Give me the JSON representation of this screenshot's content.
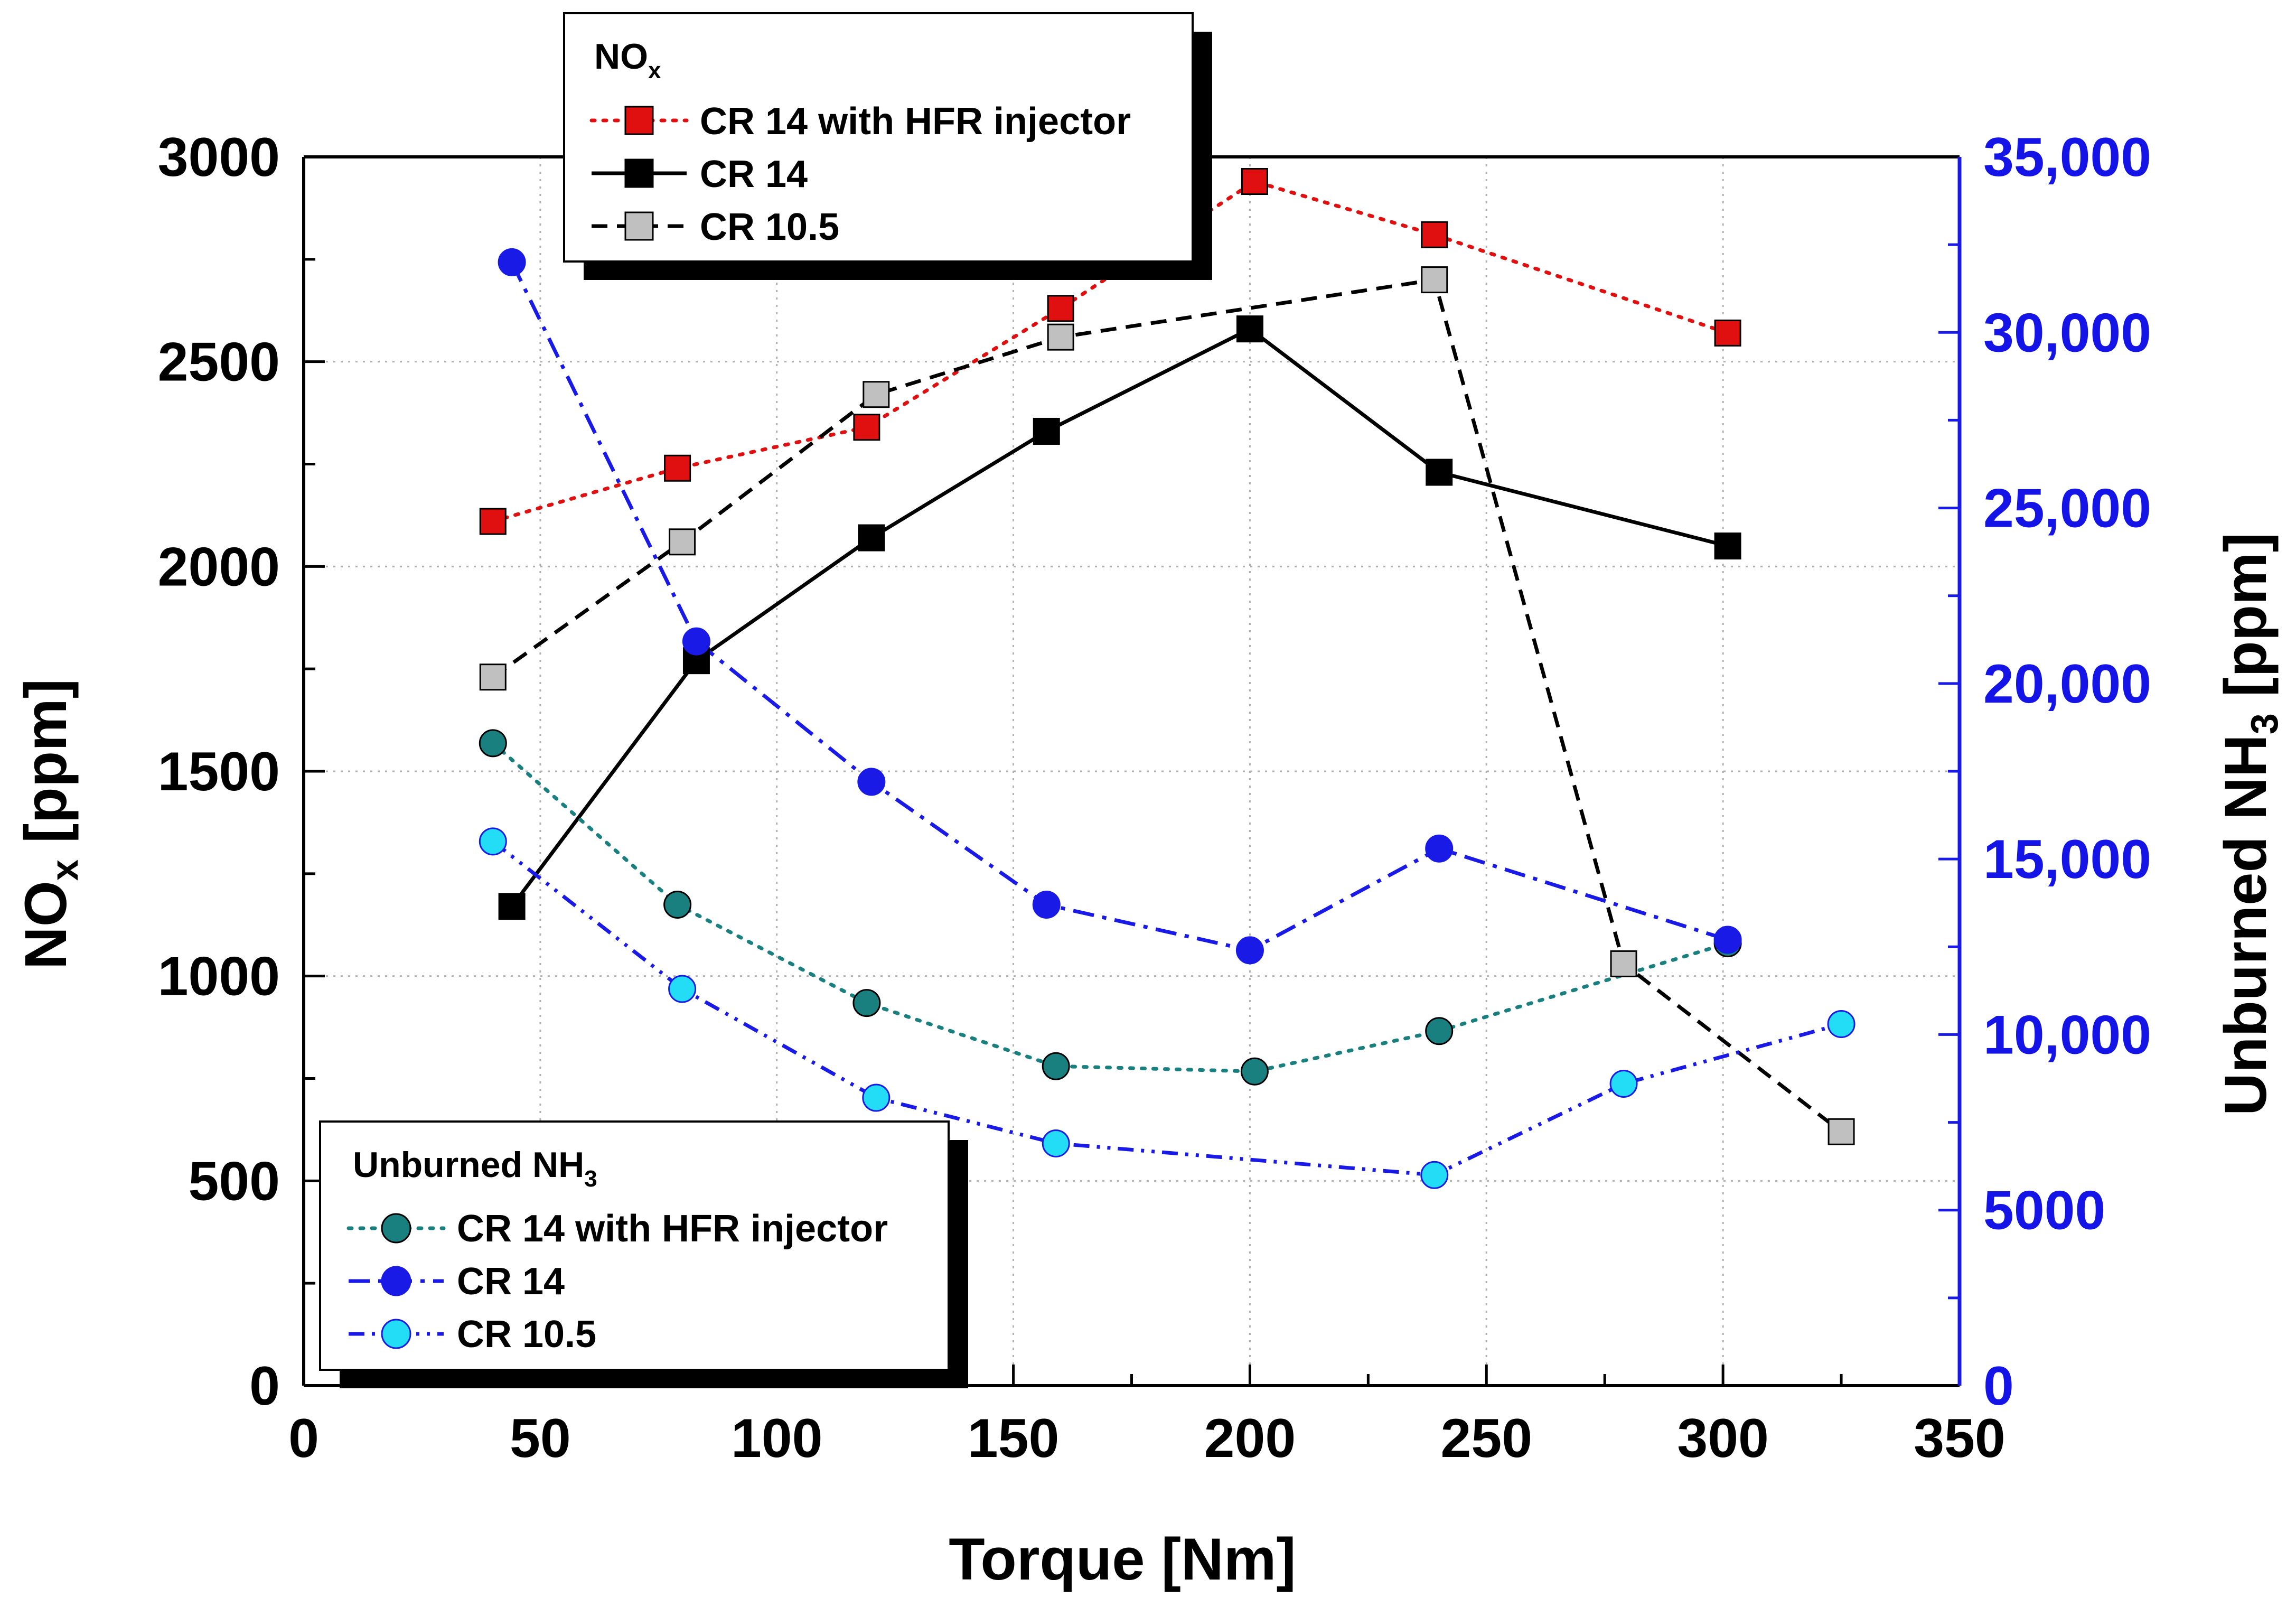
{
  "chart_data": {
    "type": "line",
    "xlabel": "Torque [Nm]",
    "ylabel_left": {
      "main": "NO",
      "sub": "x",
      "rest": " [ppm]"
    },
    "ylabel_right": {
      "main": "Unburned NH",
      "sub": "3",
      "rest": " [ppm]"
    },
    "xlim": [
      0,
      350
    ],
    "ylim_left": [
      0,
      3000
    ],
    "ylim_right": [
      0,
      35000
    ],
    "x_ticks": [
      {
        "value": 0,
        "label": "0"
      },
      {
        "value": 50,
        "label": "50"
      },
      {
        "value": 100,
        "label": "100"
      },
      {
        "value": 150,
        "label": "150"
      },
      {
        "value": 200,
        "label": "200"
      },
      {
        "value": 250,
        "label": "250"
      },
      {
        "value": 300,
        "label": "300"
      },
      {
        "value": 350,
        "label": "350"
      }
    ],
    "y_left_ticks": [
      {
        "value": 0,
        "label": "0"
      },
      {
        "value": 500,
        "label": "500"
      },
      {
        "value": 1000,
        "label": "1000"
      },
      {
        "value": 1500,
        "label": "1500"
      },
      {
        "value": 2000,
        "label": "2000"
      },
      {
        "value": 2500,
        "label": "2500"
      },
      {
        "value": 3000,
        "label": "3000"
      }
    ],
    "y_right_ticks": [
      {
        "value": 0,
        "label": "0"
      },
      {
        "value": 5000,
        "label": "5000"
      },
      {
        "value": 10000,
        "label": "10,000"
      },
      {
        "value": 15000,
        "label": "15,000"
      },
      {
        "value": 20000,
        "label": "20,000"
      },
      {
        "value": 25000,
        "label": "25,000"
      },
      {
        "value": 30000,
        "label": "30,000"
      },
      {
        "value": 35000,
        "label": "35,000"
      }
    ],
    "grid": true,
    "legends": [
      {
        "title_main": "NO",
        "title_sub": "x",
        "placement": "top-center",
        "entries": [
          "CR 14 with HFR injector",
          "CR 14",
          "CR 10.5"
        ]
      },
      {
        "title_main": "Unburned NH",
        "title_sub": "3",
        "placement": "bottom-left",
        "entries": [
          "CR 14 with HFR injector",
          "CR 14",
          "CR 10.5"
        ]
      }
    ],
    "series": [
      {
        "name": "CR 14 with HFR injector",
        "group": "NOx",
        "axis": "left",
        "marker": "square",
        "color": "#e01010",
        "line_style": "dotted",
        "x": [
          40,
          79,
          119,
          160,
          201,
          239,
          301
        ],
        "y": [
          2110,
          2240,
          2340,
          2630,
          2940,
          2810,
          2570
        ]
      },
      {
        "name": "CR 14",
        "group": "NOx",
        "axis": "left",
        "marker": "square",
        "color": "#000000",
        "line_style": "solid",
        "x": [
          44,
          83,
          120,
          157,
          200,
          240,
          301
        ],
        "y": [
          1170,
          1770,
          2070,
          2330,
          2580,
          2230,
          2050
        ]
      },
      {
        "name": "CR 10.5",
        "group": "NOx",
        "axis": "left",
        "marker": "square",
        "color": "#c0c0c0",
        "line_color": "#000000",
        "line_style": "dashed",
        "x": [
          40,
          80,
          121,
          160,
          239,
          279,
          325
        ],
        "y": [
          1730,
          2060,
          2420,
          2560,
          2700,
          1030,
          620
        ]
      },
      {
        "name": "CR 14 with HFR injector",
        "group": "NH3",
        "axis": "right",
        "marker": "circle",
        "color": "#1a7f7f",
        "line_style": "dotted",
        "x": [
          40,
          79,
          119,
          159,
          201,
          240,
          301
        ],
        "y": [
          18300,
          13700,
          10900,
          9100,
          8950,
          10100,
          12600
        ]
      },
      {
        "name": "CR 14",
        "group": "NH3",
        "axis": "right",
        "marker": "circle",
        "color": "#1a1ae6",
        "line_style": "dashdot",
        "x": [
          44,
          83,
          120,
          157,
          200,
          240,
          301
        ],
        "y": [
          32000,
          21200,
          17200,
          13700,
          12400,
          15300,
          12700
        ]
      },
      {
        "name": "CR 10.5",
        "group": "NH3",
        "axis": "right",
        "marker": "circle",
        "color": "#22ddf5",
        "line_color": "#1a1ae6",
        "line_style": "dashdotdot",
        "x": [
          40,
          80,
          121,
          159,
          239,
          279,
          325
        ],
        "y": [
          15500,
          11300,
          8200,
          6900,
          6000,
          8600,
          10300
        ]
      }
    ]
  }
}
